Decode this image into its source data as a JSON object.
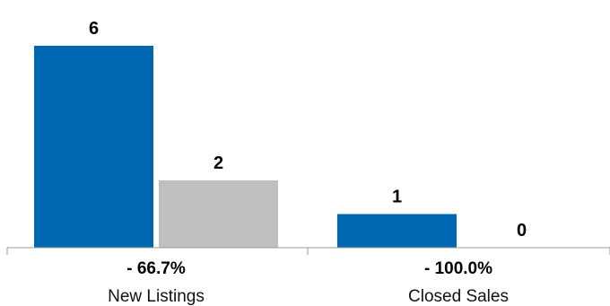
{
  "chart_data": {
    "type": "bar",
    "categories": [
      "New Listings",
      "Closed Sales"
    ],
    "series": [
      {
        "values": [
          6,
          1
        ],
        "color": "#0068B3"
      },
      {
        "values": [
          2,
          0
        ],
        "color": "#BFBFBF"
      }
    ],
    "value_labels": [
      [
        "6",
        "2"
      ],
      [
        "1",
        "0"
      ]
    ],
    "change_labels": [
      "- 66.7%",
      "- 100.0%"
    ],
    "ylim": [
      0,
      6
    ],
    "grid": false,
    "legend": "none"
  }
}
